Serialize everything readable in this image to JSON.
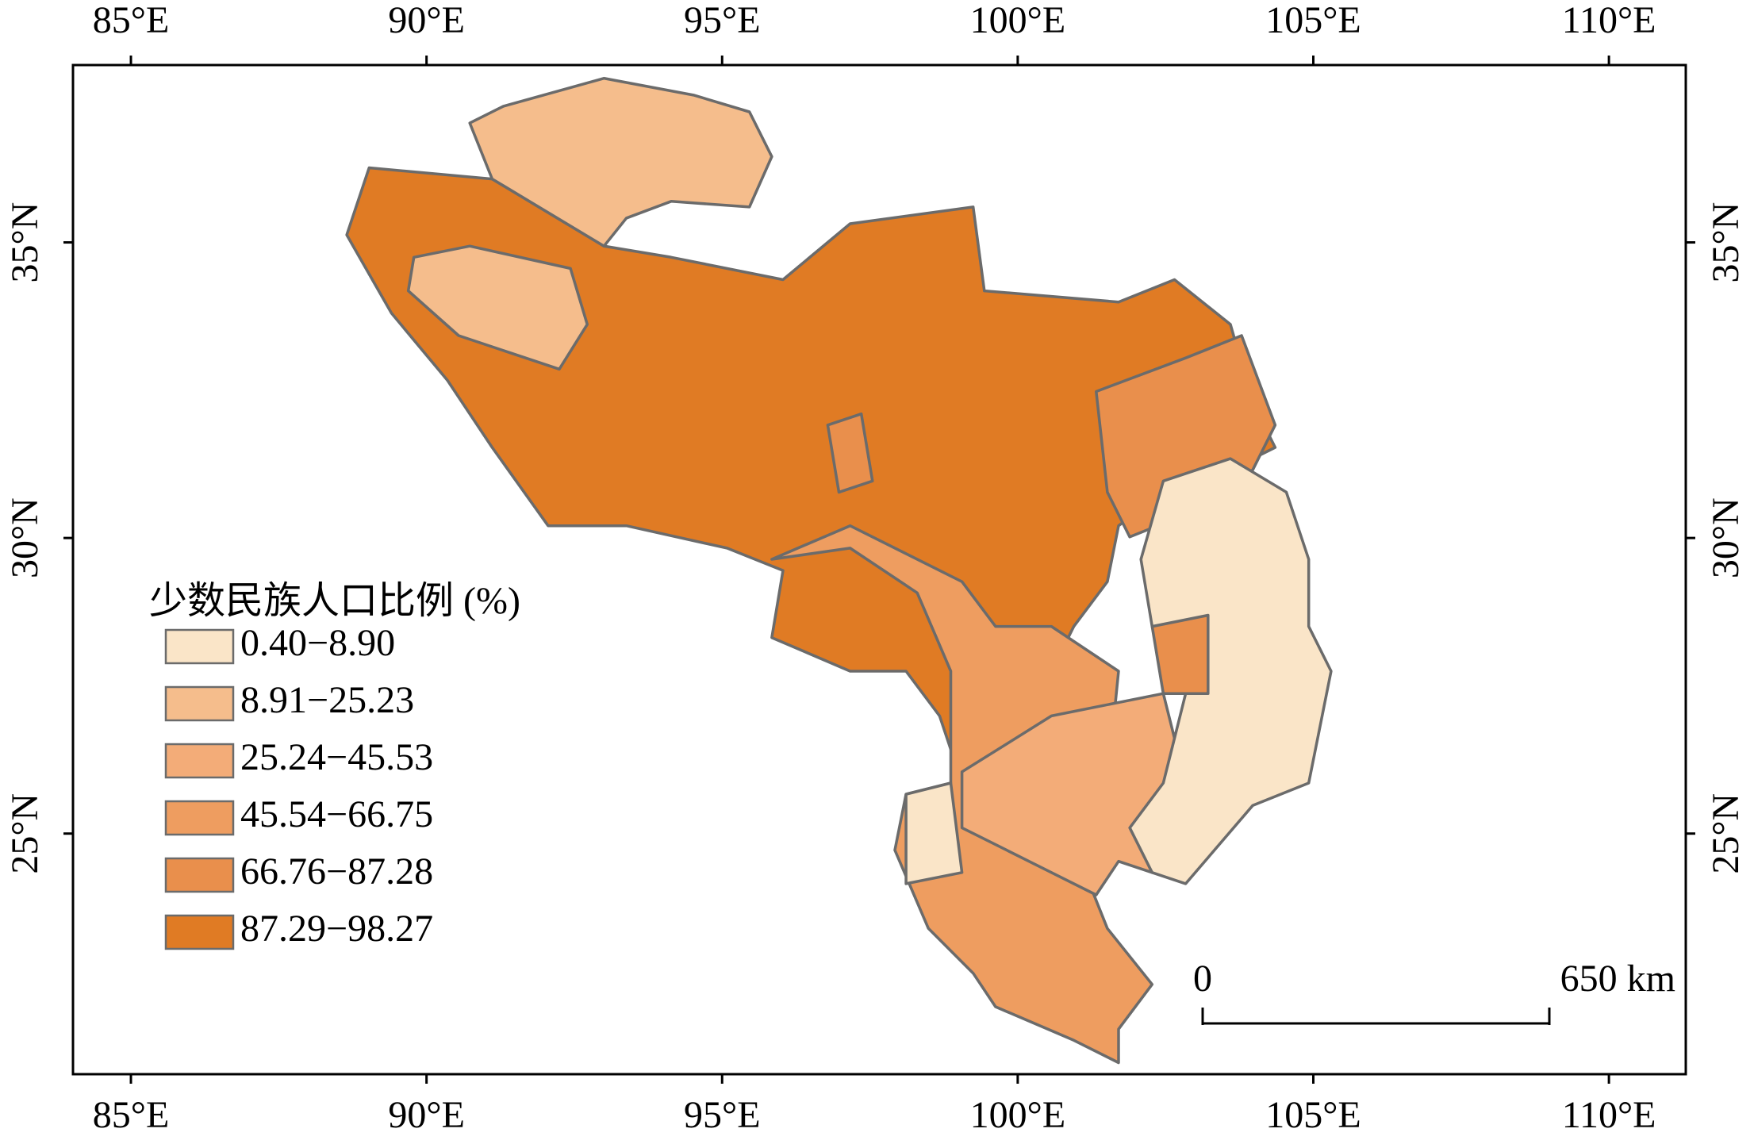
{
  "chart_data": {
    "type": "choropleth",
    "xlim": [
      84.02,
      111.3
    ],
    "ylim": [
      20.93,
      38.0
    ],
    "xticks": [
      {
        "value": 85,
        "label": "85°E"
      },
      {
        "value": 90,
        "label": "90°E"
      },
      {
        "value": 95,
        "label": "95°E"
      },
      {
        "value": 100,
        "label": "100°E"
      },
      {
        "value": 105,
        "label": "105°E"
      },
      {
        "value": 110,
        "label": "110°E"
      }
    ],
    "yticks": [
      {
        "value": 25,
        "label": "25°N"
      },
      {
        "value": 30,
        "label": "30°N"
      },
      {
        "value": 35,
        "label": "35°N"
      }
    ],
    "legend": {
      "title": "少数民族人口比例 (%)",
      "corner": "lower-left",
      "classes": [
        {
          "label": "0.40−8.90",
          "color": "#fae5c8"
        },
        {
          "label": "8.91−25.23",
          "color": "#f5bd8c"
        },
        {
          "label": "25.24−45.53",
          "color": "#f3ac78"
        },
        {
          "label": "45.54−66.75",
          "color": "#ee9d60"
        },
        {
          "label": "66.76−87.28",
          "color": "#e98f4c"
        },
        {
          "label": "87.29−98.27",
          "color": "#e07b24"
        }
      ]
    },
    "scale_bar": {
      "labels": [
        "0",
        "650 km"
      ]
    }
  }
}
